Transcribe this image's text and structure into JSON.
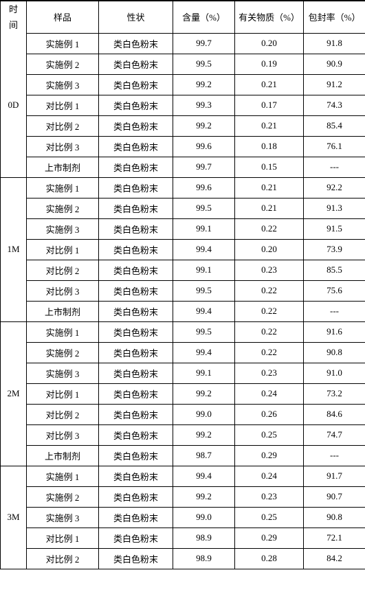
{
  "columns": {
    "time_line1": "时",
    "time_line2": "间",
    "sample": "样品",
    "character": "性状",
    "content": "含量（%）",
    "impurity": "有关物质（%）",
    "encap": "包封率（%）"
  },
  "groups": [
    {
      "time": "0D",
      "rows": [
        {
          "sample": "实施例 1",
          "character": "类白色粉末",
          "content": "99.7",
          "impurity": "0.20",
          "encap": "91.8"
        },
        {
          "sample": "实施例 2",
          "character": "类白色粉末",
          "content": "99.5",
          "impurity": "0.19",
          "encap": "90.9"
        },
        {
          "sample": "实施例 3",
          "character": "类白色粉末",
          "content": "99.2",
          "impurity": "0.21",
          "encap": "91.2"
        },
        {
          "sample": "对比例 1",
          "character": "类白色粉末",
          "content": "99.3",
          "impurity": "0.17",
          "encap": "74.3"
        },
        {
          "sample": "对比例 2",
          "character": "类白色粉末",
          "content": "99.2",
          "impurity": "0.21",
          "encap": "85.4"
        },
        {
          "sample": "对比例 3",
          "character": "类白色粉末",
          "content": "99.6",
          "impurity": "0.18",
          "encap": "76.1"
        },
        {
          "sample": "上市制剂",
          "character": "类白色粉末",
          "content": "99.7",
          "impurity": "0.15",
          "encap": "---"
        }
      ]
    },
    {
      "time": "1M",
      "rows": [
        {
          "sample": "实施例 1",
          "character": "类白色粉末",
          "content": "99.6",
          "impurity": "0.21",
          "encap": "92.2"
        },
        {
          "sample": "实施例 2",
          "character": "类白色粉末",
          "content": "99.5",
          "impurity": "0.21",
          "encap": "91.3"
        },
        {
          "sample": "实施例 3",
          "character": "类白色粉末",
          "content": "99.1",
          "impurity": "0.22",
          "encap": "91.5"
        },
        {
          "sample": "对比例 1",
          "character": "类白色粉末",
          "content": "99.4",
          "impurity": "0.20",
          "encap": "73.9"
        },
        {
          "sample": "对比例 2",
          "character": "类白色粉末",
          "content": "99.1",
          "impurity": "0.23",
          "encap": "85.5"
        },
        {
          "sample": "对比例 3",
          "character": "类白色粉末",
          "content": "99.5",
          "impurity": "0.22",
          "encap": "75.6"
        },
        {
          "sample": "上市制剂",
          "character": "类白色粉末",
          "content": "99.4",
          "impurity": "0.22",
          "encap": "---"
        }
      ]
    },
    {
      "time": "2M",
      "rows": [
        {
          "sample": "实施例 1",
          "character": "类白色粉末",
          "content": "99.5",
          "impurity": "0.22",
          "encap": "91.6"
        },
        {
          "sample": "实施例 2",
          "character": "类白色粉末",
          "content": "99.4",
          "impurity": "0.22",
          "encap": "90.8"
        },
        {
          "sample": "实施例 3",
          "character": "类白色粉末",
          "content": "99.1",
          "impurity": "0.23",
          "encap": "91.0"
        },
        {
          "sample": "对比例 1",
          "character": "类白色粉末",
          "content": "99.2",
          "impurity": "0.24",
          "encap": "73.2"
        },
        {
          "sample": "对比例 2",
          "character": "类白色粉末",
          "content": "99.0",
          "impurity": "0.26",
          "encap": "84.6"
        },
        {
          "sample": "对比例 3",
          "character": "类白色粉末",
          "content": "99.2",
          "impurity": "0.25",
          "encap": "74.7"
        },
        {
          "sample": "上市制剂",
          "character": "类白色粉末",
          "content": "98.7",
          "impurity": "0.29",
          "encap": "---"
        }
      ]
    },
    {
      "time": "3M",
      "rows": [
        {
          "sample": "实施例 1",
          "character": "类白色粉末",
          "content": "99.4",
          "impurity": "0.24",
          "encap": "91.7"
        },
        {
          "sample": "实施例 2",
          "character": "类白色粉末",
          "content": "99.2",
          "impurity": "0.23",
          "encap": "90.7"
        },
        {
          "sample": "实施例 3",
          "character": "类白色粉末",
          "content": "99.0",
          "impurity": "0.25",
          "encap": "90.8"
        },
        {
          "sample": "对比例 1",
          "character": "类白色粉末",
          "content": "98.9",
          "impurity": "0.29",
          "encap": "72.1"
        },
        {
          "sample": "对比例 2",
          "character": "类白色粉末",
          "content": "98.9",
          "impurity": "0.28",
          "encap": "84.2"
        }
      ]
    }
  ]
}
